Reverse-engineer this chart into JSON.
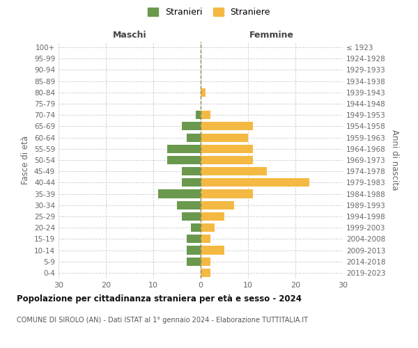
{
  "age_groups": [
    "0-4",
    "5-9",
    "10-14",
    "15-19",
    "20-24",
    "25-29",
    "30-34",
    "35-39",
    "40-44",
    "45-49",
    "50-54",
    "55-59",
    "60-64",
    "65-69",
    "70-74",
    "75-79",
    "80-84",
    "85-89",
    "90-94",
    "95-99",
    "100+"
  ],
  "birth_years": [
    "2019-2023",
    "2014-2018",
    "2009-2013",
    "2004-2008",
    "1999-2003",
    "1994-1998",
    "1989-1993",
    "1984-1988",
    "1979-1983",
    "1974-1978",
    "1969-1973",
    "1964-1968",
    "1959-1963",
    "1954-1958",
    "1949-1953",
    "1944-1948",
    "1939-1943",
    "1934-1938",
    "1929-1933",
    "1924-1928",
    "≤ 1923"
  ],
  "maschi": [
    0,
    3,
    3,
    3,
    2,
    4,
    5,
    9,
    4,
    4,
    7,
    7,
    3,
    4,
    1,
    0,
    0,
    0,
    0,
    0,
    0
  ],
  "femmine": [
    2,
    2,
    5,
    2,
    3,
    5,
    7,
    11,
    23,
    14,
    11,
    11,
    10,
    11,
    2,
    0,
    1,
    0,
    0,
    0,
    0
  ],
  "maschi_color": "#6a994e",
  "femmine_color": "#f4b942",
  "title": "Popolazione per cittadinanza straniera per età e sesso - 2024",
  "subtitle": "COMUNE DI SIROLO (AN) - Dati ISTAT al 1° gennaio 2024 - Elaborazione TUTTITALIA.IT",
  "legend_maschi": "Stranieri",
  "legend_femmine": "Straniere",
  "xlabel_left": "Maschi",
  "xlabel_right": "Femmine",
  "ylabel_left": "Fasce di età",
  "ylabel_right": "Anni di nascita",
  "xlim": 30,
  "background_color": "#ffffff",
  "grid_color": "#cccccc"
}
